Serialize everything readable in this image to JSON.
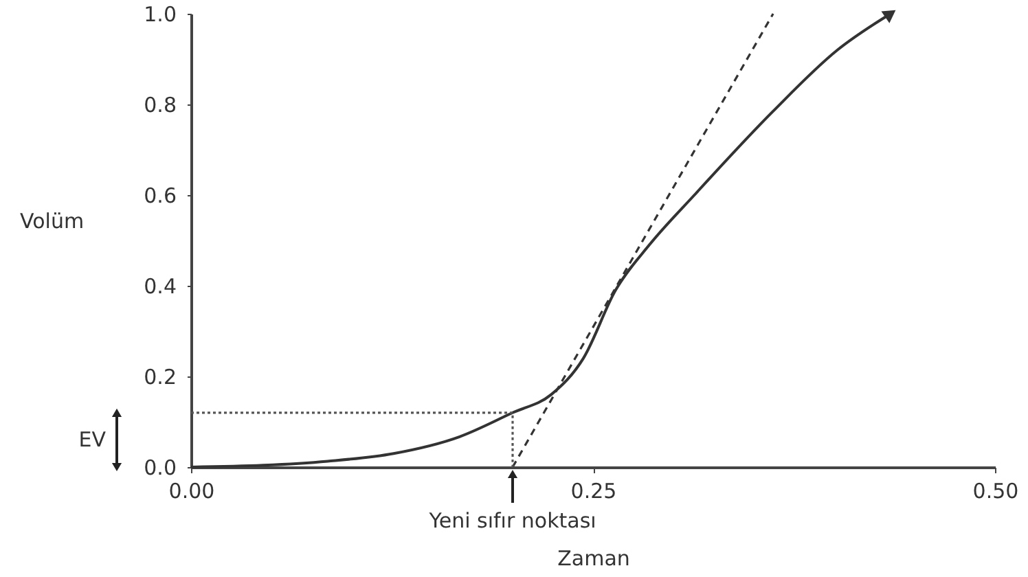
{
  "chart_data": {
    "type": "line",
    "xlabel": "Zaman",
    "ylabel": "Volüm",
    "xlim": [
      0,
      0.5
    ],
    "ylim": [
      0,
      1
    ],
    "xticks": [
      {
        "value": 0,
        "label": "0.00"
      },
      0.25,
      {
        "value": 0.5,
        "label": "0.50"
      }
    ],
    "yticks": [
      {
        "value": 0,
        "label": "0.0"
      },
      0.2,
      0.4,
      0.6,
      0.8,
      {
        "value": 1,
        "label": "1.0"
      }
    ],
    "grid": false,
    "marker": "none",
    "series": [
      {
        "color": "#333333",
        "line_style": "solid",
        "x": [
          0,
          0.045,
          0.085,
          0.126,
          0.167,
          0.2,
          0.224,
          0.244,
          0.264,
          0.285,
          0.313,
          0.362,
          0.402,
          0.435
        ],
        "values": [
          0,
          0.004,
          0.013,
          0.03,
          0.067,
          0.12,
          0.16,
          0.24,
          0.39,
          0.49,
          0.6,
          0.785,
          0.92,
          1.0
        ]
      },
      {
        "color": "#333333",
        "line_style": "dashed",
        "x": [
          0.2,
          0.362
        ],
        "values": [
          0,
          1.0
        ]
      },
      {
        "color": "#555555",
        "line_style": "dotted",
        "x": [
          0,
          0.2,
          0.2
        ],
        "values": [
          0.12,
          0.12,
          0
        ]
      }
    ],
    "annotations": [
      {
        "text": "Yeni sıfır noktası",
        "x": 0.2,
        "y": 0
      },
      "EV"
    ]
  }
}
